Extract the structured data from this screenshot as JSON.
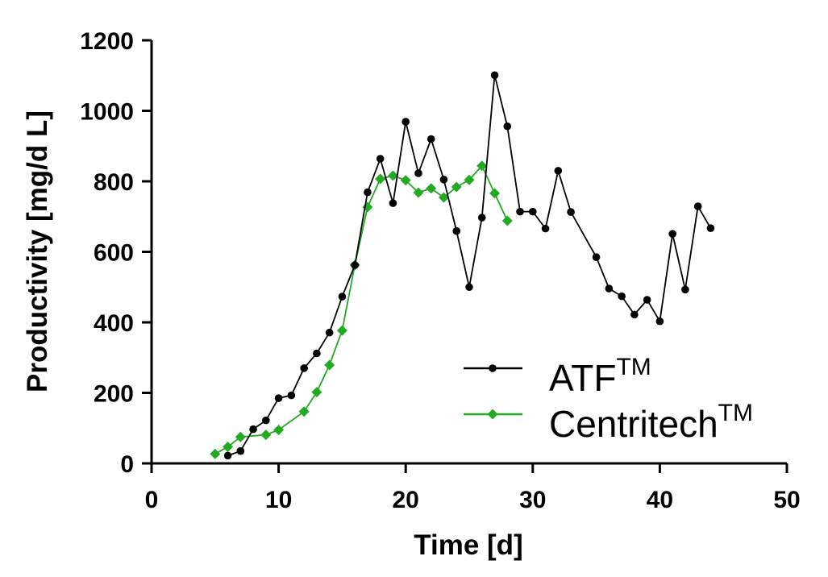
{
  "chart_data": {
    "type": "line",
    "title": "",
    "xlabel": "Time [d]",
    "ylabel": "Productivity [mg/d L]",
    "xlim": [
      0,
      50
    ],
    "ylim": [
      0,
      1200
    ],
    "x_ticks": [
      0,
      10,
      20,
      30,
      40,
      50
    ],
    "y_ticks": [
      0,
      200,
      400,
      600,
      800,
      1000,
      1200
    ],
    "grid": false,
    "legend_position": "bottom-right",
    "series": [
      {
        "name": "ATF",
        "name_superscript": "TM",
        "color": "#000000",
        "marker": "circle",
        "x": [
          6,
          7,
          8,
          9,
          10,
          11,
          12,
          13,
          14,
          15,
          16,
          17,
          18,
          19,
          20,
          21,
          22,
          23,
          24,
          25,
          26,
          27,
          28,
          29,
          30,
          31,
          32,
          33,
          35,
          36,
          37,
          38,
          39,
          40,
          41,
          42,
          43,
          44
        ],
        "y": [
          22,
          35,
          97,
          122,
          185,
          193,
          270,
          312,
          371,
          473,
          562,
          769,
          864,
          738,
          969,
          823,
          920,
          805,
          659,
          500,
          697,
          1101,
          956,
          714,
          714,
          666,
          830,
          713,
          585,
          496,
          474,
          422,
          464,
          403,
          651,
          493,
          729,
          667
        ]
      },
      {
        "name": "Centritech",
        "name_superscript": "TM",
        "color": "#22aa22",
        "marker": "diamond",
        "x": [
          5,
          6,
          7,
          9,
          10,
          12,
          13,
          14,
          15,
          16,
          17,
          18,
          19,
          20,
          21,
          22,
          23,
          24,
          25,
          26,
          27,
          28
        ],
        "y": [
          27,
          47,
          75,
          81,
          95,
          147,
          202,
          279,
          377,
          563,
          727,
          807,
          816,
          803,
          768,
          780,
          754,
          784,
          804,
          844,
          766,
          688
        ]
      }
    ]
  }
}
